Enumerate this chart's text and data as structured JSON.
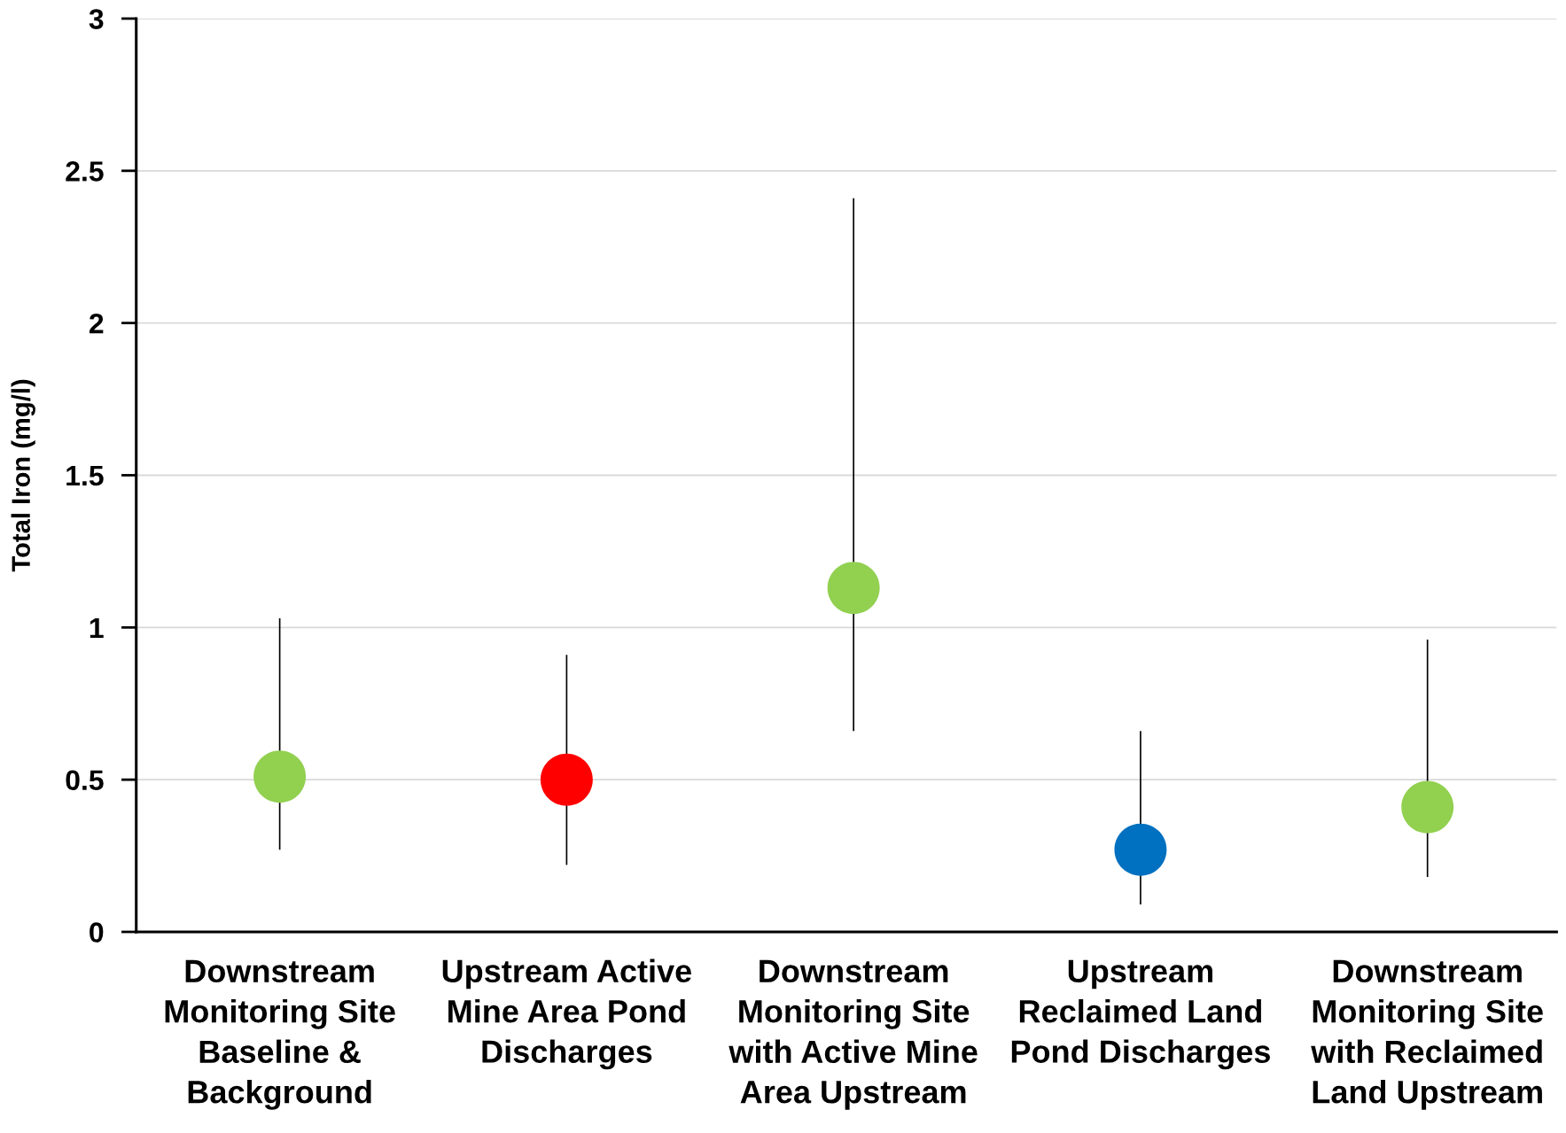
{
  "chart_data": {
    "type": "scatter",
    "categories": [
      "Downstream\nMonitoring Site\nBaseline &\nBackground",
      "Upstream Active\nMine Area Pond\nDischarges",
      "Downstream\nMonitoring Site\nwith Active Mine\nArea Upstream",
      "Upstream\nReclaimed Land\nPond Discharges",
      "Downstream\nMonitoring Site\nwith Reclaimed\nLand Upstream"
    ],
    "values": [
      0.51,
      0.5,
      1.13,
      0.27,
      0.41
    ],
    "colors": [
      "#92d050",
      "#ff0000",
      "#92d050",
      "#0070c0",
      "#92d050"
    ],
    "errors": [
      [
        0.27,
        1.03
      ],
      [
        0.22,
        0.91
      ],
      [
        0.66,
        2.41
      ],
      [
        0.09,
        0.66
      ],
      [
        0.18,
        0.96
      ]
    ],
    "ylabel": "Total Iron (mg/l)",
    "ylim": [
      0,
      3
    ],
    "yticks": [
      0,
      0.5,
      1,
      1.5,
      2,
      2.5,
      3
    ],
    "grid": "y",
    "marker": "circle"
  }
}
